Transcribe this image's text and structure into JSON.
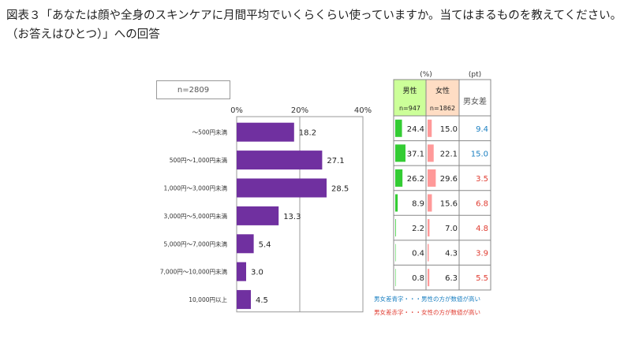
{
  "title": "図表３「あなたは顔や全身のスキンケアに月間平均でいくらくらい使っていますか。当てはまるものを教えてください。（お答えはひとつ）」への回答",
  "sample_label": "n=2809",
  "colors": {
    "bar": "#7030a0",
    "male": "#33cc33",
    "female": "#ff9999",
    "male_head": "#ccff99",
    "female_head": "#ffddc4",
    "blue": "#1a7fc1",
    "red": "#e03c31"
  },
  "table": {
    "unit_pct": "(%)",
    "unit_pt": "(pt)",
    "male_label": "男性",
    "male_n": "n=947",
    "female_label": "女性",
    "female_n": "n=1862",
    "diff_label": "男女差"
  },
  "legend": {
    "blue_note": "男女差青字・・・男性の方が数値が高い",
    "red_note": "男女差赤字・・・女性の方が数値が高い"
  },
  "chart_data": {
    "type": "bar",
    "orientation": "horizontal",
    "categories": [
      "～500円未満",
      "500円～1,000円未満",
      "1,000円～3,000円未満",
      "3,000円～5,000円未満",
      "5,000円～7,000円未満",
      "7,000円～10,000円未満",
      "10,000円以上"
    ],
    "values": [
      18.2,
      27.1,
      28.5,
      13.3,
      5.4,
      3.0,
      4.5
    ],
    "value_labels": [
      "18.2",
      "27.1",
      "28.5",
      "13.3",
      "5.4",
      "3.0",
      "4.5"
    ],
    "xlim": [
      0,
      40
    ],
    "xticks": [
      "0%",
      "20%",
      "40%"
    ],
    "series": [
      {
        "name": "男性",
        "values": [
          24.4,
          37.1,
          26.2,
          8.9,
          2.2,
          0.4,
          0.8
        ],
        "labels": [
          "24.4",
          "37.1",
          "26.2",
          "8.9",
          "2.2",
          "0.4",
          "0.8"
        ]
      },
      {
        "name": "女性",
        "values": [
          15.0,
          22.1,
          29.6,
          15.6,
          7.0,
          4.3,
          6.3
        ],
        "labels": [
          "15.0",
          "22.1",
          "29.6",
          "15.6",
          "7.0",
          "4.3",
          "6.3"
        ]
      }
    ],
    "diff": {
      "name": "男女差",
      "labels": [
        "9.4",
        "15.0",
        "3.5",
        "6.8",
        "4.8",
        "3.9",
        "5.5"
      ],
      "higher": [
        "male",
        "male",
        "female",
        "female",
        "female",
        "female",
        "female"
      ]
    }
  }
}
